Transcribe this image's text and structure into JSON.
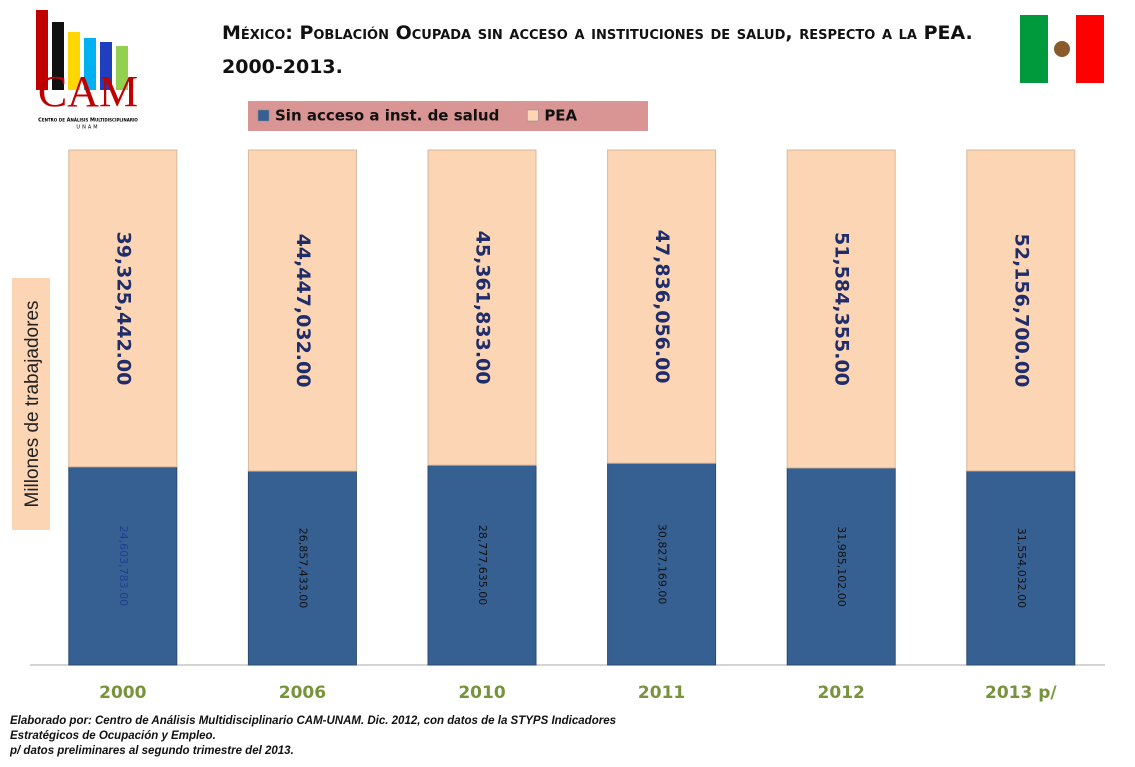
{
  "logo": {
    "text": "CAM",
    "subtitle": "Centro de Análisis Multidisciplinario",
    "institution": "UNAM"
  },
  "chart_data": {
    "type": "bar",
    "stacking": "percent",
    "title": "México: Población Ocupada sin acceso a instituciones de salud, respecto a la PEA. 2000-2013.",
    "y_label": "Millones de trabajadores",
    "categories": [
      "2000",
      "2006",
      "2010",
      "2011",
      "2012",
      "2013 p/"
    ],
    "series": [
      {
        "name": "Sin acceso a inst. de salud",
        "color": "#376092",
        "values": [
          24603783,
          26857433,
          28777635,
          30827169,
          31985102,
          31554032
        ],
        "value_labels": [
          "24,603,783.00",
          "26,857,433.00",
          "28,777,635.00",
          "30,827,169.00",
          "31,985,102.00",
          "31,554,032.00"
        ]
      },
      {
        "name": "PEA",
        "color": "#fcd5b5",
        "values": [
          39325442,
          44447032,
          45361833,
          47836056,
          51584355,
          52156700
        ],
        "value_labels": [
          "39,325,442.00",
          "44,447,032.00",
          "45,361,833.00",
          "47,836,056.00",
          "51,584,355.00",
          "52,156,700.00"
        ]
      }
    ]
  },
  "notes": [
    "Elaborado por: Centro de Análisis Multidisciplinario  CAM-UNAM. Dic. 2012, con datos de la STYPS Indicadores",
    "Estratégicos de Ocupación y Empleo.",
    "p/ datos preliminares al segundo trimestre del 2013."
  ]
}
